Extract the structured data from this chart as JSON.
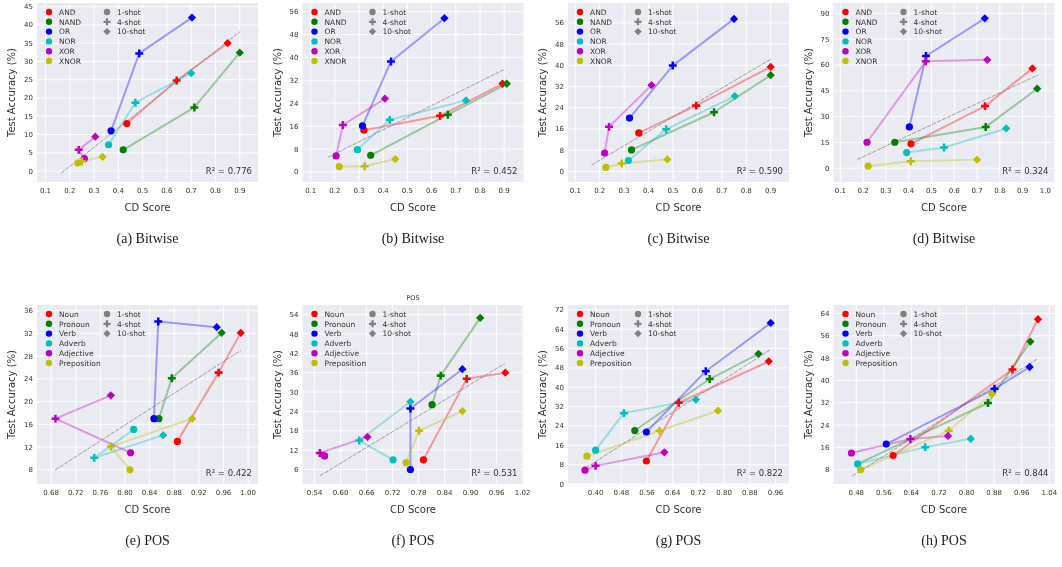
{
  "chart_data": [
    {
      "type": "line",
      "xlabel": "CD Score",
      "ylabel": "Test Accuracy (%)",
      "annotations": [
        "R² = 0.776",
        "(a) Bitwise",
        "1-shot",
        "4-shot",
        "10-shot"
      ],
      "xlim": [
        0.065,
        0.975
      ],
      "xticks": [
        0.1,
        0.2,
        0.3,
        0.4,
        0.5,
        0.6,
        0.7,
        0.8,
        0.9
      ],
      "ylim": [
        -3,
        46
      ],
      "yticks": [
        0,
        5,
        10,
        15,
        20,
        25,
        30,
        35,
        40,
        45
      ],
      "grid": true,
      "legend": "top left",
      "marker": "none",
      "line_style": "solid",
      "series": [
        {
          "name": "AND",
          "color": "#ff0000",
          "x": [
            0.435,
            0.64,
            0.85
          ],
          "values": [
            13.0,
            24.8,
            35.0
          ]
        },
        {
          "name": "NAND",
          "color": "#008000",
          "x": [
            0.42,
            0.713,
            0.9
          ],
          "values": [
            5.8,
            17.4,
            32.4
          ]
        },
        {
          "name": "OR",
          "color": "#0000ff",
          "x": [
            0.37,
            0.486,
            0.703
          ],
          "values": [
            11.0,
            32.2,
            42.0
          ]
        },
        {
          "name": "NOR",
          "color": "#00bfbf",
          "x": [
            0.36,
            0.47,
            0.7
          ],
          "values": [
            7.2,
            18.7,
            26.8
          ]
        },
        {
          "name": "XOR",
          "color": "#bf00bf",
          "x": [
            0.26,
            0.237,
            0.305
          ],
          "values": [
            3.4,
            5.8,
            9.4
          ]
        },
        {
          "name": "XNOR",
          "color": "#bfbf00",
          "x": [
            0.233,
            0.25,
            0.335
          ],
          "values": [
            2.2,
            2.7,
            3.9
          ]
        },
        {
          "type": "scatter",
          "marker": "circle",
          "color": "#808080",
          "colors": [
            "#ff0000",
            "#008000",
            "#0000ff",
            "#00bfbf",
            "#bf00bf",
            "#bfbf00"
          ],
          "x": [
            0.435,
            0.42,
            0.37,
            0.36,
            0.26,
            0.233
          ],
          "values": [
            13.0,
            5.8,
            11.0,
            7.2,
            3.4,
            2.2
          ]
        },
        {
          "type": "scatter",
          "marker": "cross",
          "color": "#808080",
          "colors": [
            "#ff0000",
            "#008000",
            "#0000ff",
            "#00bfbf",
            "#bf00bf",
            "#bfbf00"
          ],
          "x": [
            0.64,
            0.713,
            0.486,
            0.47,
            0.237,
            0.25
          ],
          "values": [
            24.8,
            17.4,
            32.2,
            18.7,
            5.8,
            2.7
          ]
        },
        {
          "type": "scatter",
          "marker": "diamond",
          "color": "#808080",
          "colors": [
            "#ff0000",
            "#008000",
            "#0000ff",
            "#00bfbf",
            "#bf00bf",
            "#bfbf00"
          ],
          "x": [
            0.85,
            0.9,
            0.703,
            0.7,
            0.305,
            0.335
          ],
          "values": [
            35.0,
            32.4,
            42.0,
            26.8,
            9.4,
            3.9
          ]
        },
        {
          "type": "line",
          "color": "#808080",
          "line_style": "dashed",
          "x": [
            0.166,
            0.9
          ],
          "values": [
            -0.5,
            38.1
          ]
        }
      ]
    },
    {
      "type": "line",
      "xlabel": "CD Score",
      "ylabel": "Test Accuracy (%)",
      "annotations": [
        "R² = 0.452",
        "(b) Bitwise",
        "1-shot",
        "4-shot",
        "10-shot"
      ],
      "xlim": [
        0.066,
        0.98
      ],
      "xticks": [
        0.1,
        0.2,
        0.3,
        0.4,
        0.5,
        0.6,
        0.7,
        0.8,
        0.9
      ],
      "ylim": [
        -3.5,
        59
      ],
      "yticks": [
        0,
        8,
        16,
        24,
        32,
        40,
        48,
        56
      ],
      "grid": true,
      "legend": "top left",
      "marker": "none",
      "line_style": "solid",
      "series": [
        {
          "name": "AND",
          "color": "#ff0000",
          "x": [
            0.32,
            0.635,
            0.893
          ],
          "values": [
            14.6,
            19.6,
            30.8
          ]
        },
        {
          "name": "NAND",
          "color": "#008000",
          "x": [
            0.348,
            0.667,
            0.911
          ],
          "values": [
            5.8,
            20.0,
            30.8
          ]
        },
        {
          "name": "OR",
          "color": "#0000ff",
          "x": [
            0.314,
            0.432,
            0.653
          ],
          "values": [
            16.1,
            38.6,
            53.7
          ]
        },
        {
          "name": "NOR",
          "color": "#00bfbf",
          "x": [
            0.293,
            0.427,
            0.742
          ],
          "values": [
            7.8,
            18.2,
            25.0
          ]
        },
        {
          "name": "XOR",
          "color": "#bf00bf",
          "x": [
            0.205,
            0.233,
            0.407
          ],
          "values": [
            5.6,
            16.4,
            25.6
          ]
        },
        {
          "name": "XNOR",
          "color": "#bfbf00",
          "x": [
            0.218,
            0.323,
            0.45
          ],
          "values": [
            1.9,
            2.0,
            4.5
          ]
        },
        {
          "type": "scatter",
          "marker": "circle",
          "color": "#808080",
          "colors": [
            "#ff0000",
            "#008000",
            "#0000ff",
            "#00bfbf",
            "#bf00bf",
            "#bfbf00"
          ],
          "x": [
            0.32,
            0.348,
            0.314,
            0.293,
            0.205,
            0.218
          ],
          "values": [
            14.6,
            5.8,
            16.1,
            7.8,
            5.6,
            1.9
          ]
        },
        {
          "type": "scatter",
          "marker": "cross",
          "color": "#808080",
          "colors": [
            "#ff0000",
            "#008000",
            "#0000ff",
            "#00bfbf",
            "#bf00bf",
            "#bfbf00"
          ],
          "x": [
            0.635,
            0.667,
            0.432,
            0.427,
            0.233,
            0.323
          ],
          "values": [
            19.6,
            20.0,
            38.6,
            18.2,
            16.4,
            2.0
          ]
        },
        {
          "type": "scatter",
          "marker": "diamond",
          "color": "#808080",
          "colors": [
            "#ff0000",
            "#008000",
            "#0000ff",
            "#00bfbf",
            "#bf00bf",
            "#bfbf00"
          ],
          "x": [
            0.893,
            0.911,
            0.653,
            0.742,
            0.407,
            0.45
          ],
          "values": [
            30.8,
            30.8,
            53.7,
            25.0,
            25.6,
            4.5
          ]
        },
        {
          "type": "line",
          "color": "#808080",
          "line_style": "dashed",
          "x": [
            0.173,
            0.905
          ],
          "values": [
            5.2,
            36.0
          ]
        }
      ]
    },
    {
      "type": "line",
      "xlabel": "CD Score",
      "ylabel": "Test Accuracy (%)",
      "annotations": [
        "R² = 0.590",
        "(c) Bitwise",
        "1-shot",
        "4-shot",
        "10-shot"
      ],
      "xlim": [
        0.07,
        0.975
      ],
      "xticks": [
        0.1,
        0.2,
        0.3,
        0.4,
        0.5,
        0.6,
        0.7,
        0.8,
        0.9
      ],
      "ylim": [
        -4,
        63.5
      ],
      "yticks": [
        0,
        8,
        16,
        24,
        32,
        40,
        48,
        56
      ],
      "grid": true,
      "legend": "top left",
      "marker": "none",
      "line_style": "solid",
      "series": [
        {
          "name": "AND",
          "color": "#ff0000",
          "x": [
            0.36,
            0.595,
            0.9
          ],
          "values": [
            14.5,
            24.8,
            39.4
          ]
        },
        {
          "name": "NAND",
          "color": "#008000",
          "x": [
            0.33,
            0.668,
            0.9
          ],
          "values": [
            8.1,
            22.3,
            36.3
          ]
        },
        {
          "name": "OR",
          "color": "#0000ff",
          "x": [
            0.322,
            0.499,
            0.75
          ],
          "values": [
            20.1,
            39.9,
            57.5
          ]
        },
        {
          "name": "NOR",
          "color": "#00bfbf",
          "x": [
            0.317,
            0.472,
            0.753
          ],
          "values": [
            4.1,
            15.9,
            28.4
          ]
        },
        {
          "name": "XOR",
          "color": "#bf00bf",
          "x": [
            0.22,
            0.238,
            0.412
          ],
          "values": [
            6.9,
            16.8,
            32.5
          ]
        },
        {
          "name": "XNOR",
          "color": "#bfbf00",
          "x": [
            0.225,
            0.29,
            0.477
          ],
          "values": [
            1.5,
            3.0,
            4.5
          ]
        },
        {
          "type": "scatter",
          "marker": "circle",
          "color": "#808080",
          "colors": [
            "#ff0000",
            "#008000",
            "#0000ff",
            "#00bfbf",
            "#bf00bf",
            "#bfbf00"
          ],
          "x": [
            0.36,
            0.33,
            0.322,
            0.317,
            0.22,
            0.225
          ],
          "values": [
            14.5,
            8.1,
            20.1,
            4.1,
            6.9,
            1.5
          ]
        },
        {
          "type": "scatter",
          "marker": "cross",
          "color": "#808080",
          "colors": [
            "#ff0000",
            "#008000",
            "#0000ff",
            "#00bfbf",
            "#bf00bf",
            "#bfbf00"
          ],
          "x": [
            0.595,
            0.668,
            0.499,
            0.472,
            0.238,
            0.29
          ],
          "values": [
            24.8,
            22.3,
            39.9,
            15.9,
            16.8,
            3.0
          ]
        },
        {
          "type": "scatter",
          "marker": "diamond",
          "color": "#808080",
          "colors": [
            "#ff0000",
            "#008000",
            "#0000ff",
            "#00bfbf",
            "#bf00bf",
            "#bfbf00"
          ],
          "x": [
            0.9,
            0.9,
            0.75,
            0.753,
            0.412,
            0.477
          ],
          "values": [
            39.4,
            36.3,
            57.5,
            28.4,
            32.5,
            4.5
          ]
        },
        {
          "type": "line",
          "color": "#808080",
          "line_style": "dashed",
          "x": [
            0.168,
            0.9
          ],
          "values": [
            2.5,
            42.3
          ]
        }
      ]
    },
    {
      "type": "line",
      "xlabel": "CD Score",
      "ylabel": "Test Accuracy (%)",
      "annotations": [
        "R² = 0.324",
        "(d) Bitwise",
        "1-shot",
        "4-shot",
        "10-shot"
      ],
      "xlim": [
        0.07,
        1.04
      ],
      "xticks": [
        0.1,
        0.2,
        0.3,
        0.4,
        0.5,
        0.6,
        0.7,
        0.8,
        0.9,
        {
          "value": 1,
          "label": "1.0"
        }
      ],
      "ylim": [
        -8,
        96
      ],
      "yticks": [
        0,
        15,
        30,
        45,
        60,
        75,
        90
      ],
      "grid": true,
      "legend": "top left",
      "marker": "none",
      "line_style": "solid",
      "series": [
        {
          "name": "AND",
          "color": "#ff0000",
          "x": [
            0.41,
            0.735,
            0.943
          ],
          "values": [
            14.2,
            36.1,
            58.0
          ]
        },
        {
          "name": "NAND",
          "color": "#008000",
          "x": [
            0.339,
            0.738,
            0.964
          ],
          "values": [
            15.1,
            24.0,
            46.2
          ]
        },
        {
          "name": "OR",
          "color": "#0000ff",
          "x": [
            0.403,
            0.476,
            0.734
          ],
          "values": [
            24.0,
            65.2,
            87.1
          ]
        },
        {
          "name": "NOR",
          "color": "#00bfbf",
          "x": [
            0.391,
            0.555,
            0.828
          ],
          "values": [
            9.1,
            12.0,
            23.1
          ]
        },
        {
          "name": "XOR",
          "color": "#bf00bf",
          "x": [
            0.217,
            0.475,
            0.745
          ],
          "values": [
            15.1,
            62.1,
            63.0
          ]
        },
        {
          "name": "XNOR",
          "color": "#bfbf00",
          "x": [
            0.222,
            0.409,
            0.7
          ],
          "values": [
            1.2,
            4.1,
            5.0
          ]
        },
        {
          "type": "scatter",
          "marker": "circle",
          "color": "#808080",
          "colors": [
            "#ff0000",
            "#008000",
            "#0000ff",
            "#00bfbf",
            "#bf00bf",
            "#bfbf00"
          ],
          "x": [
            0.41,
            0.339,
            0.403,
            0.391,
            0.217,
            0.222
          ],
          "values": [
            14.2,
            15.1,
            24.0,
            9.1,
            15.1,
            1.2
          ]
        },
        {
          "type": "scatter",
          "marker": "cross",
          "color": "#808080",
          "colors": [
            "#ff0000",
            "#008000",
            "#0000ff",
            "#00bfbf",
            "#bf00bf",
            "#bfbf00"
          ],
          "x": [
            0.735,
            0.738,
            0.476,
            0.555,
            0.475,
            0.409
          ],
          "values": [
            36.1,
            24.0,
            65.2,
            12.0,
            62.1,
            4.1
          ]
        },
        {
          "type": "scatter",
          "marker": "diamond",
          "color": "#808080",
          "colors": [
            "#ff0000",
            "#008000",
            "#0000ff",
            "#00bfbf",
            "#bf00bf",
            "#bfbf00"
          ],
          "x": [
            0.943,
            0.964,
            0.734,
            0.828,
            0.745,
            0.7
          ],
          "values": [
            58.0,
            46.2,
            87.1,
            23.1,
            63.0,
            5.0
          ]
        },
        {
          "type": "line",
          "color": "#808080",
          "line_style": "dashed",
          "x": [
            0.176,
            0.967
          ],
          "values": [
            5.2,
            54.1
          ]
        }
      ]
    },
    {
      "type": "line",
      "xlabel": "CD Score",
      "ylabel": "Test Accuracy (%)",
      "annotations": [
        "R² = 0.422",
        "(e) POS",
        "1-shot",
        "4-shot",
        "10-shot"
      ],
      "xlim": [
        0.657,
        1.016
      ],
      "xticks": [
        0.68,
        0.72,
        0.76,
        {
          "value": 0.8,
          "label": "0.80"
        },
        0.84,
        0.88,
        0.92,
        0.96,
        {
          "value": 1,
          "label": "1.00"
        }
      ],
      "ylim": [
        5.5,
        37
      ],
      "yticks": [
        8,
        12,
        16,
        20,
        24,
        28,
        32,
        36
      ],
      "grid": true,
      "legend": "top left",
      "marker": "none",
      "line_style": "solid",
      "series": [
        {
          "name": "Noun",
          "color": "#ff0000",
          "x": [
            0.885,
            0.952,
            0.988
          ],
          "values": [
            13.0,
            25.1,
            32.1
          ]
        },
        {
          "name": "Pronoun",
          "color": "#008000",
          "x": [
            0.855,
            0.876,
            0.957
          ],
          "values": [
            17.0,
            24.1,
            32.1
          ]
        },
        {
          "name": "Verb",
          "color": "#0000ff",
          "x": [
            0.847,
            0.854,
            0.949
          ],
          "values": [
            17.0,
            34.1,
            33.1
          ]
        },
        {
          "name": "Adverb",
          "color": "#00bfbf",
          "x": [
            0.814,
            0.75,
            0.862
          ],
          "values": [
            15.1,
            10.1,
            14.1
          ]
        },
        {
          "name": "Adjective",
          "color": "#bf00bf",
          "x": [
            0.809,
            0.687,
            0.777
          ],
          "values": [
            11.0,
            17.0,
            21.1
          ]
        },
        {
          "name": "Preposition",
          "color": "#bfbf00",
          "x": [
            0.808,
            0.777,
            0.909
          ],
          "values": [
            8.0,
            12.1,
            17.0
          ]
        },
        {
          "type": "scatter",
          "marker": "circle",
          "color": "#808080",
          "colors": [
            "#ff0000",
            "#008000",
            "#0000ff",
            "#00bfbf",
            "#bf00bf",
            "#bfbf00"
          ],
          "x": [
            0.885,
            0.855,
            0.847,
            0.814,
            0.809,
            0.808
          ],
          "values": [
            13.0,
            17.0,
            17.0,
            15.1,
            11.0,
            8.0
          ]
        },
        {
          "type": "scatter",
          "marker": "cross",
          "color": "#808080",
          "colors": [
            "#ff0000",
            "#008000",
            "#0000ff",
            "#00bfbf",
            "#bf00bf",
            "#bfbf00"
          ],
          "x": [
            0.952,
            0.876,
            0.854,
            0.75,
            0.687,
            0.777
          ],
          "values": [
            25.1,
            24.1,
            34.1,
            10.1,
            17.0,
            12.1
          ]
        },
        {
          "type": "scatter",
          "marker": "diamond",
          "color": "#808080",
          "colors": [
            "#ff0000",
            "#008000",
            "#0000ff",
            "#00bfbf",
            "#bf00bf",
            "#bfbf00"
          ],
          "x": [
            0.988,
            0.957,
            0.949,
            0.862,
            0.777,
            0.909
          ],
          "values": [
            32.1,
            32.1,
            33.1,
            14.1,
            21.1,
            17.0
          ]
        },
        {
          "type": "line",
          "color": "#808080",
          "line_style": "dashed",
          "x": [
            0.687,
            0.988
          ],
          "values": [
            8.0,
            29.0
          ]
        }
      ]
    },
    {
      "type": "line",
      "title": "POS",
      "xlabel": "CD Score",
      "ylabel": "Test Accuracy (%)",
      "annotations": [
        "R² = 0.531",
        "(f) POS",
        "1-shot",
        "4-shot",
        "10-shot"
      ],
      "xlim": [
        0.512,
        1.022
      ],
      "xticks": [
        0.54,
        {
          "value": 0.6,
          "label": "0.60"
        },
        0.66,
        0.72,
        0.78,
        0.84,
        {
          "value": 0.9,
          "label": "0.90"
        },
        0.96,
        1.02
      ],
      "ylim": [
        1.5,
        57
      ],
      "yticks": [
        6,
        12,
        18,
        24,
        30,
        36,
        42,
        48,
        54
      ],
      "grid": true,
      "legend": "top left",
      "marker": "none",
      "line_style": "solid",
      "series": [
        {
          "name": "Noun",
          "color": "#ff0000",
          "x": [
            0.791,
            0.891,
            0.98
          ],
          "values": [
            9.0,
            34.1,
            36.0
          ]
        },
        {
          "name": "Pronoun",
          "color": "#008000",
          "x": [
            0.811,
            0.831,
            0.922
          ],
          "values": [
            26.1,
            35.1,
            53.0
          ]
        },
        {
          "name": "Verb",
          "color": "#0000ff",
          "x": [
            0.761,
            0.761,
            0.881
          ],
          "values": [
            6.0,
            24.9,
            37.1
          ]
        },
        {
          "name": "Adverb",
          "color": "#00bfbf",
          "x": [
            0.721,
            0.643,
            0.761
          ],
          "values": [
            9.0,
            15.0,
            27.0
          ]
        },
        {
          "name": "Adjective",
          "color": "#bf00bf",
          "x": [
            0.563,
            0.552,
            0.662
          ],
          "values": [
            10.2,
            11.1,
            16.1
          ]
        },
        {
          "name": "Preposition",
          "color": "#bfbf00",
          "x": [
            0.751,
            0.781,
            0.881
          ],
          "values": [
            8.1,
            18.0,
            24.1
          ]
        },
        {
          "type": "scatter",
          "marker": "circle",
          "color": "#808080",
          "colors": [
            "#ff0000",
            "#008000",
            "#0000ff",
            "#00bfbf",
            "#bf00bf",
            "#bfbf00"
          ],
          "x": [
            0.791,
            0.811,
            0.761,
            0.721,
            0.563,
            0.751
          ],
          "values": [
            9.0,
            26.1,
            6.0,
            9.0,
            10.2,
            8.1
          ]
        },
        {
          "type": "scatter",
          "marker": "cross",
          "color": "#808080",
          "colors": [
            "#ff0000",
            "#008000",
            "#0000ff",
            "#00bfbf",
            "#bf00bf",
            "#bfbf00"
          ],
          "x": [
            0.891,
            0.831,
            0.761,
            0.643,
            0.552,
            0.781
          ],
          "values": [
            34.1,
            35.1,
            24.9,
            15.0,
            11.1,
            18.0
          ]
        },
        {
          "type": "scatter",
          "marker": "diamond",
          "color": "#808080",
          "colors": [
            "#ff0000",
            "#008000",
            "#0000ff",
            "#00bfbf",
            "#bf00bf",
            "#bfbf00"
          ],
          "x": [
            0.98,
            0.922,
            0.881,
            0.761,
            0.662,
            0.881
          ],
          "values": [
            36.0,
            53.0,
            37.1,
            27.0,
            16.1,
            24.1
          ]
        },
        {
          "type": "line",
          "color": "#808080",
          "line_style": "dashed",
          "x": [
            0.553,
            0.978
          ],
          "values": [
            4.1,
            38.8
          ]
        }
      ]
    },
    {
      "type": "line",
      "xlabel": "CD Score",
      "ylabel": "Test Accuracy (%)",
      "annotations": [
        "R² = 0.822",
        "(g) POS",
        "1-shot",
        "4-shot",
        "10-shot"
      ],
      "xlim": [
        0.314,
        1.002
      ],
      "xticks": [
        {
          "value": 0.4,
          "label": "0.40"
        },
        0.48,
        0.56,
        0.64,
        0.72,
        {
          "value": 0.8,
          "label": "0.80"
        },
        0.88,
        0.96
      ],
      "ylim": [
        0,
        74
      ],
      "yticks": [
        0,
        8,
        16,
        24,
        32,
        40,
        48,
        56,
        64,
        72
      ],
      "grid": true,
      "legend": "top left",
      "marker": "none",
      "line_style": "solid",
      "series": [
        {
          "name": "Noun",
          "color": "#ff0000",
          "x": [
            0.558,
            0.659,
            0.939
          ],
          "values": [
            9.5,
            33.6,
            50.7
          ]
        },
        {
          "name": "Pronoun",
          "color": "#008000",
          "x": [
            0.522,
            0.755,
            0.907
          ],
          "values": [
            22.1,
            43.4,
            53.8
          ]
        },
        {
          "name": "Verb",
          "color": "#0000ff",
          "x": [
            0.558,
            0.743,
            0.945
          ],
          "values": [
            21.5,
            46.6,
            66.6
          ]
        },
        {
          "name": "Adverb",
          "color": "#00bfbf",
          "x": [
            0.4,
            0.488,
            0.712
          ],
          "values": [
            14.0,
            29.3,
            34.9
          ]
        },
        {
          "name": "Adjective",
          "color": "#bf00bf",
          "x": [
            0.367,
            0.4,
            0.614
          ],
          "values": [
            5.7,
            7.5,
            13.1
          ]
        },
        {
          "name": "Preposition",
          "color": "#bfbf00",
          "x": [
            0.373,
            0.599,
            0.781
          ],
          "values": [
            11.5,
            22.0,
            30.3
          ]
        },
        {
          "type": "scatter",
          "marker": "circle",
          "color": "#808080",
          "colors": [
            "#ff0000",
            "#008000",
            "#0000ff",
            "#00bfbf",
            "#bf00bf",
            "#bfbf00"
          ],
          "x": [
            0.558,
            0.522,
            0.558,
            0.4,
            0.367,
            0.373
          ],
          "values": [
            9.5,
            22.1,
            21.5,
            14.0,
            5.7,
            11.5
          ]
        },
        {
          "type": "scatter",
          "marker": "cross",
          "color": "#808080",
          "colors": [
            "#ff0000",
            "#008000",
            "#0000ff",
            "#00bfbf",
            "#bf00bf",
            "#bfbf00"
          ],
          "x": [
            0.659,
            0.755,
            0.743,
            0.488,
            0.4,
            0.599
          ],
          "values": [
            33.6,
            43.4,
            46.6,
            29.3,
            7.5,
            22.0
          ]
        },
        {
          "type": "scatter",
          "marker": "diamond",
          "color": "#808080",
          "colors": [
            "#ff0000",
            "#008000",
            "#0000ff",
            "#00bfbf",
            "#bf00bf",
            "#bfbf00"
          ],
          "x": [
            0.939,
            0.907,
            0.945,
            0.712,
            0.614,
            0.781
          ],
          "values": [
            50.7,
            53.8,
            66.6,
            34.9,
            13.1,
            30.3
          ]
        },
        {
          "type": "line",
          "color": "#808080",
          "line_style": "dashed",
          "x": [
            0.37,
            0.945
          ],
          "values": [
            6.7,
            55.6
          ]
        }
      ]
    },
    {
      "type": "line",
      "xlabel": "CD Score",
      "ylabel": "Test Accuracy (%)",
      "annotations": [
        "R² = 0.844",
        "(h) POS",
        "1-shot",
        "4-shot",
        "10-shot"
      ],
      "xlim": [
        0.414,
        1.055
      ],
      "xticks": [
        0.48,
        0.56,
        0.64,
        0.72,
        {
          "value": 0.8,
          "label": "0.80"
        },
        0.88,
        0.96,
        1.04
      ],
      "ylim": [
        2.9,
        67
      ],
      "yticks": [
        8,
        16,
        24,
        32,
        40,
        48,
        56,
        64
      ],
      "grid": true,
      "legend": "top left",
      "marker": "none",
      "line_style": "solid",
      "series": [
        {
          "name": "Noun",
          "color": "#ff0000",
          "x": [
            0.587,
            0.933,
            1.007
          ],
          "values": [
            13.1,
            43.9,
            61.9
          ]
        },
        {
          "name": "Pronoun",
          "color": "#008000",
          "x": [
            0.484,
            0.862,
            0.985
          ],
          "values": [
            10.1,
            31.9,
            53.9
          ]
        },
        {
          "name": "Verb",
          "color": "#0000ff",
          "x": [
            0.567,
            0.881,
            0.983
          ],
          "values": [
            17.2,
            37.0,
            44.8
          ]
        },
        {
          "name": "Adverb",
          "color": "#00bfbf",
          "x": [
            0.484,
            0.68,
            0.812
          ],
          "values": [
            10.1,
            16.1,
            19.1
          ]
        },
        {
          "name": "Adjective",
          "color": "#bf00bf",
          "x": [
            0.466,
            0.637,
            0.746
          ],
          "values": [
            14.0,
            19.0,
            20.1
          ]
        },
        {
          "name": "Preposition",
          "color": "#bfbf00",
          "x": [
            0.493,
            0.748,
            0.874
          ],
          "values": [
            8.0,
            22.0,
            35.1
          ]
        },
        {
          "type": "scatter",
          "marker": "circle",
          "color": "#808080",
          "colors": [
            "#ff0000",
            null,
            "#0000ff",
            "#00bfbf",
            "#bf00bf",
            "#bfbf00"
          ],
          "x": [
            0.587,
            null,
            0.567,
            0.484,
            0.466,
            0.493
          ],
          "values": [
            13.1,
            null,
            17.2,
            10.1,
            14.0,
            8.0
          ]
        },
        {
          "type": "scatter",
          "marker": "cross",
          "color": "#808080",
          "colors": [
            "#ff0000",
            "#008000",
            "#0000ff",
            "#00bfbf",
            "#bf00bf",
            "#bfbf00"
          ],
          "x": [
            0.933,
            0.862,
            0.881,
            0.68,
            0.637,
            0.748
          ],
          "values": [
            43.9,
            31.9,
            37.0,
            16.1,
            19.0,
            22.0
          ]
        },
        {
          "type": "scatter",
          "marker": "diamond",
          "color": "#808080",
          "colors": [
            "#ff0000",
            "#008000",
            "#0000ff",
            "#00bfbf",
            "#bf00bf",
            "#bfbf00"
          ],
          "x": [
            1.007,
            0.985,
            0.983,
            0.812,
            0.746,
            0.874
          ],
          "values": [
            61.9,
            53.9,
            44.8,
            19.1,
            20.1,
            35.1
          ]
        },
        {
          "type": "line",
          "color": "#808080",
          "line_style": "dashed",
          "x": [
            0.469,
            1.007
          ],
          "values": [
            5.8,
            47.8
          ]
        }
      ]
    }
  ]
}
